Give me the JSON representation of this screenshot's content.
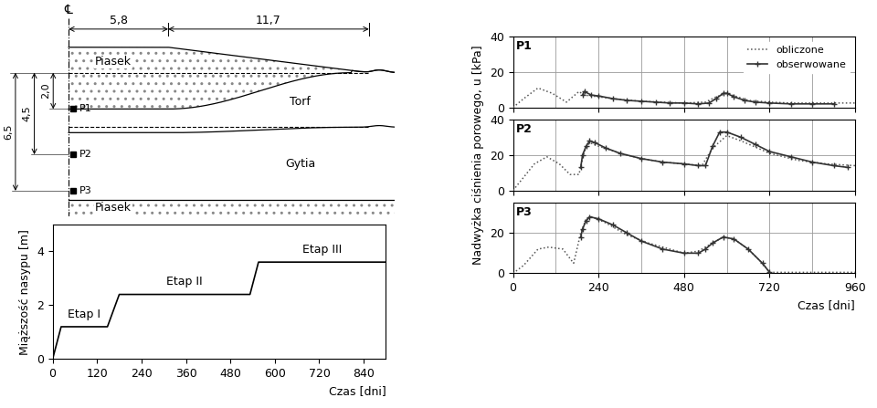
{
  "cross_section": {
    "centerline": "℄",
    "dimensions": {
      "crest_half_width": {
        "value": 5.8,
        "label": "5,8"
      },
      "slope_width": {
        "value": 11.7,
        "label": "11,7"
      },
      "depths": [
        {
          "value": 2.0,
          "label": "2,0"
        },
        {
          "value": 4.5,
          "label": "4,5"
        },
        {
          "value": 6.5,
          "label": "6,5"
        }
      ]
    },
    "layers": [
      "Piasek",
      "Torf",
      "Gytia",
      "Piasek"
    ],
    "piezometers": [
      "P1",
      "P2",
      "P3"
    ]
  },
  "chart_data": [
    {
      "type": "line",
      "x_label": "Czas [dni]",
      "y_label": "Miąższość nasypu [m]",
      "x": [
        0,
        23,
        148,
        180,
        533,
        556,
        900
      ],
      "values": [
        0,
        1.2,
        1.2,
        2.4,
        2.4,
        3.6,
        3.6
      ],
      "color": "#000000",
      "annotations": [
        "Etap I",
        "Etap II",
        "Etap III"
      ],
      "xlim": [
        0,
        900
      ],
      "xticks": [
        0,
        120,
        240,
        360,
        480,
        600,
        720,
        840
      ],
      "ylim": [
        0,
        5
      ],
      "yticks": [
        0,
        2,
        4
      ],
      "grid": false
    },
    {
      "type": "line",
      "title": "P1",
      "xlim": [
        0,
        960
      ],
      "xticks": [
        0,
        240,
        480,
        720,
        960
      ],
      "ylim": [
        0,
        40
      ],
      "yticks": [
        0,
        20,
        40
      ],
      "grid": true,
      "tick_labels": "y",
      "legend": "upper right",
      "series": [
        {
          "name": "obliczone",
          "color": "#555555",
          "line_style": "dotted",
          "x": [
            0,
            30,
            70,
            110,
            150,
            185,
            200,
            240,
            300,
            360,
            420,
            480,
            540,
            570,
            600,
            630,
            660,
            720,
            780,
            840,
            900,
            960
          ],
          "values": [
            0,
            5,
            11,
            8,
            3,
            9,
            7,
            6,
            4.5,
            3.5,
            3,
            2.5,
            3,
            6,
            8,
            6,
            4,
            3,
            2.5,
            2.5,
            2.5,
            2.5
          ]
        },
        {
          "name": "obserwowane",
          "color": "#333333",
          "line_style": "solid",
          "marker": "+",
          "x": [
            195,
            200,
            220,
            240,
            280,
            320,
            360,
            400,
            440,
            480,
            520,
            550,
            570,
            590,
            600,
            620,
            650,
            680,
            720,
            780,
            840,
            900
          ],
          "values": [
            7,
            9,
            7,
            6.5,
            5,
            4,
            3.5,
            3,
            2.5,
            2.5,
            2,
            2.5,
            5,
            8,
            8,
            6,
            4,
            3,
            2.5,
            2,
            2,
            2
          ]
        }
      ]
    },
    {
      "type": "line",
      "title": "P2",
      "y_label": "Nadwyżka ciśnienia porowego, u [kPa]",
      "xlim": [
        0,
        960
      ],
      "xticks": [
        0,
        240,
        480,
        720,
        960
      ],
      "ylim": [
        0,
        40
      ],
      "yticks": [
        0,
        20,
        40
      ],
      "grid": true,
      "tick_labels": "y",
      "series": [
        {
          "name": "obliczone",
          "color": "#555555",
          "line_style": "dotted",
          "x": [
            0,
            20,
            60,
            95,
            130,
            160,
            185,
            200,
            215,
            240,
            300,
            360,
            420,
            480,
            530,
            560,
            600,
            640,
            720,
            800,
            880,
            960
          ],
          "values": [
            0,
            5,
            15,
            19,
            15,
            9,
            9,
            22,
            27,
            25,
            21,
            18,
            16,
            15,
            14,
            24,
            31,
            28,
            21,
            17,
            15,
            14
          ]
        },
        {
          "name": "obserwowane",
          "color": "#333333",
          "line_style": "solid",
          "marker": "+",
          "x": [
            190,
            195,
            205,
            215,
            230,
            260,
            300,
            360,
            420,
            480,
            520,
            540,
            560,
            580,
            600,
            640,
            680,
            720,
            780,
            840,
            900,
            940
          ],
          "values": [
            13,
            20,
            25,
            28,
            27,
            24,
            21,
            18,
            16,
            15,
            14,
            14,
            25,
            33,
            33,
            30,
            26,
            22,
            19,
            16,
            14,
            13
          ]
        }
      ]
    },
    {
      "type": "line",
      "title": "P3",
      "x_label": "Czas [dni]",
      "xlim": [
        0,
        960
      ],
      "xticks": [
        0,
        240,
        480,
        720,
        960
      ],
      "ylim": [
        0,
        35
      ],
      "yticks": [
        0,
        20
      ],
      "grid": true,
      "series": [
        {
          "name": "obliczone",
          "color": "#555555",
          "line_style": "dotted",
          "x": [
            0,
            30,
            70,
            100,
            140,
            170,
            190,
            205,
            220,
            260,
            320,
            380,
            440,
            480,
            520,
            560,
            590,
            620,
            660,
            700,
            720,
            780,
            840,
            900,
            960
          ],
          "values": [
            0,
            4,
            12,
            13,
            12,
            5,
            20,
            27,
            28,
            25,
            19,
            15,
            12,
            10,
            11,
            15,
            18,
            17,
            12,
            5,
            0.5,
            0.5,
            0.5,
            0.5,
            0.5
          ]
        },
        {
          "name": "obserwowane",
          "color": "#333333",
          "line_style": "solid",
          "marker": "+",
          "x": [
            190,
            195,
            205,
            215,
            240,
            280,
            320,
            360,
            420,
            480,
            520,
            540,
            560,
            590,
            620,
            660,
            700,
            720
          ],
          "values": [
            18,
            22,
            26,
            28,
            27,
            24,
            20,
            16,
            12,
            10,
            10,
            12,
            15,
            18,
            17,
            12,
            5,
            0.5
          ]
        }
      ]
    }
  ]
}
